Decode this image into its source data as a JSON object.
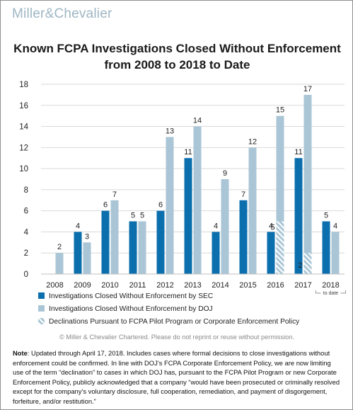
{
  "logo": {
    "left": "Miller",
    "amp": "&",
    "right": "Chevalier"
  },
  "chart_data": {
    "type": "bar",
    "title": "Known FCPA Investigations Closed Without Enforcement from 2008 to 2018 to Date",
    "title_lines": [
      "Known FCPA Investigations Closed Without Enforcement",
      "from 2008 to 2018 to Date"
    ],
    "xlabel": "",
    "ylabel": "",
    "ylim": [
      0,
      18
    ],
    "yticks": [
      0,
      2,
      4,
      6,
      8,
      10,
      12,
      14,
      16,
      18
    ],
    "grid": true,
    "categories": [
      "2008",
      "2009",
      "2010",
      "2011",
      "2012",
      "2013",
      "2014",
      "2015",
      "2016",
      "2017",
      "2018"
    ],
    "category_note": {
      "category": "2018",
      "text": "to date"
    },
    "series": [
      {
        "name": "Investigations Closed Without Enforcement by SEC",
        "color": "#0b6fae",
        "values": [
          null,
          4,
          6,
          5,
          6,
          11,
          4,
          7,
          4,
          11,
          5
        ]
      },
      {
        "name": "Investigations Closed Without Enforcement by DOJ",
        "color": "#aac6d6",
        "values": [
          2,
          3,
          7,
          5,
          13,
          14,
          9,
          12,
          15,
          17,
          4
        ]
      }
    ],
    "overlay": {
      "name": "Declinations Pursuant to FCPA Pilot Program or Corporate Enforcement Policy",
      "color": "#aac6d6",
      "stripe_color": "#ffffff",
      "series_index": 1,
      "values": [
        null,
        null,
        null,
        null,
        null,
        null,
        null,
        null,
        5,
        2,
        null
      ]
    },
    "legend_position": "bottom"
  },
  "copyright": "© Miller & Chevalier Chartered. Please do not reprint or reuse without permission.",
  "note": {
    "label": "Note",
    "text": ": Updated through April 17, 2018. Includes cases where formal decisions to close investigations without enforcement could be confirmed. In line with DOJ’s FCPA Corporate Enforcement Policy, we are now limiting use of the term “declination” to cases in which DOJ has, pursuant to the FCPA Pilot Program or new Corporate Enforcement Policy, publicly acknowledged that a company “would have been prosecuted or criminally resolved except for the company’s voluntary disclosure, full cooperation, remediation, and payment of disgorgement, forfeiture, and/or restitution.”"
  }
}
